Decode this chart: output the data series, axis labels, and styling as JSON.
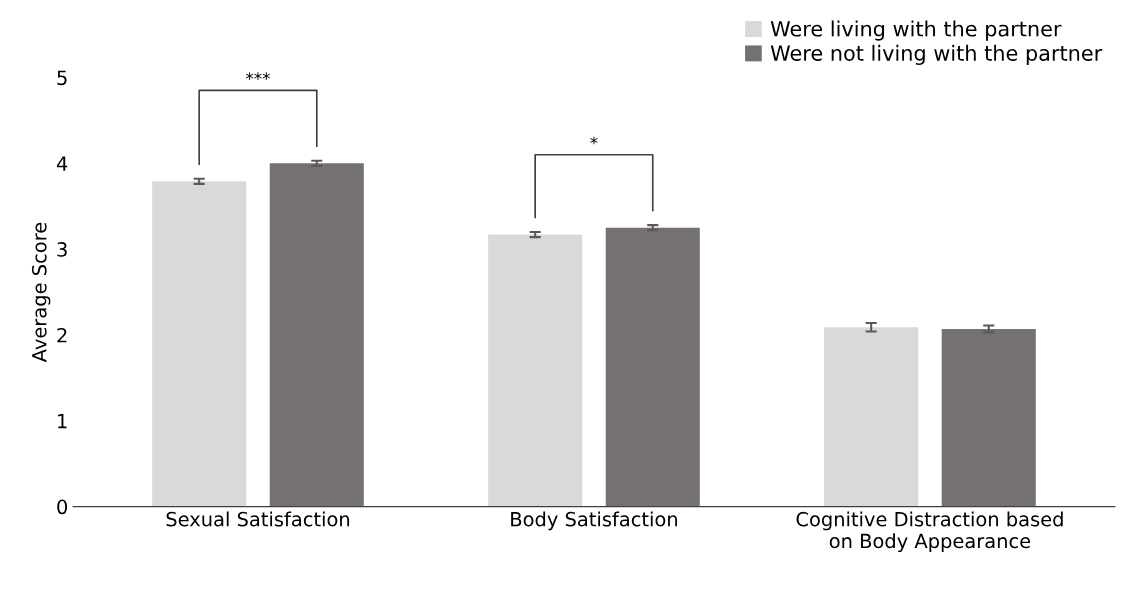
{
  "chart_data": {
    "type": "bar",
    "ylabel": "Average Score",
    "categories": [
      "Sexual Satisfaction",
      "Body Satisfaction",
      "Cognitive Distraction based\non Body Appearance"
    ],
    "series": [
      {
        "name": "Were living with the partner",
        "color": "#d9d9d9",
        "values": [
          3.79,
          3.17,
          2.09
        ],
        "errors": [
          0.03,
          0.03,
          0.05
        ]
      },
      {
        "name": "Were not living with the partner",
        "color": "#757171",
        "values": [
          4.0,
          3.25,
          2.07
        ],
        "errors": [
          0.03,
          0.03,
          0.04
        ]
      }
    ],
    "ylim": [
      0,
      5
    ],
    "yticks": [
      0,
      1,
      2,
      3,
      4,
      5
    ],
    "grid": false,
    "legend": "top right",
    "annotations": [
      "***",
      "*"
    ]
  }
}
